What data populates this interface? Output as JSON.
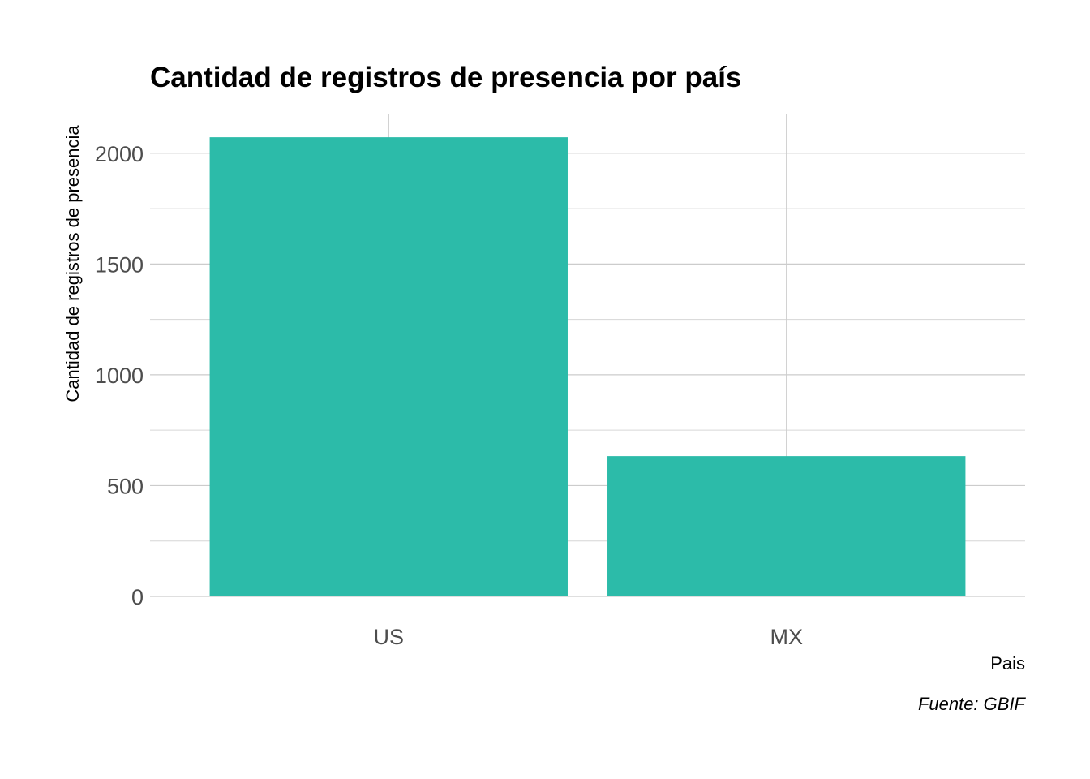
{
  "chart_data": {
    "type": "bar",
    "title": "Cantidad de registros de presencia por país",
    "xlabel": "Pais",
    "ylabel": "Cantidad de registros de presencia",
    "caption": "Fuente: GBIF",
    "categories": [
      "US",
      "MX"
    ],
    "values": [
      2072,
      633
    ],
    "ylim": [
      0,
      2175
    ],
    "yticks": [
      0,
      500,
      1000,
      1500,
      2000
    ],
    "ytick_labels": [
      "0",
      "500",
      "1000",
      "1500",
      "2000"
    ],
    "grid": true,
    "legend": "none",
    "bar_color": "#2CBBA9"
  }
}
